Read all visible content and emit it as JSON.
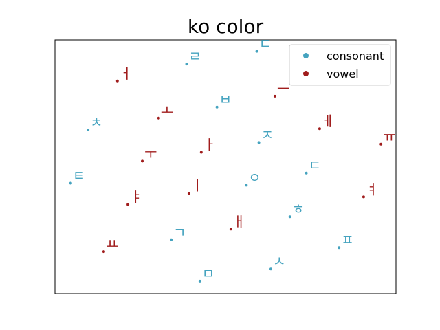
{
  "chart_data": {
    "type": "scatter",
    "title": "ko color",
    "xlim": [
      0,
      1
    ],
    "ylim": [
      0,
      1
    ],
    "x_ticks": false,
    "y_ticks": false,
    "legend_position": "top-right",
    "series": [
      {
        "name": "consonant",
        "color": "#45a3bf",
        "points": [
          {
            "label": "ㄹ",
            "x": 0.386,
            "y": 0.905
          },
          {
            "label": "ㄷ",
            "x": 0.592,
            "y": 0.955
          },
          {
            "label": "ㅂ",
            "x": 0.475,
            "y": 0.735
          },
          {
            "label": "ㅊ",
            "x": 0.097,
            "y": 0.645
          },
          {
            "label": "ㅈ",
            "x": 0.598,
            "y": 0.595
          },
          {
            "label": "ㅌ",
            "x": 0.046,
            "y": 0.435
          },
          {
            "label": "ㅇ",
            "x": 0.561,
            "y": 0.427
          },
          {
            "label": "ㄷ",
            "x": 0.737,
            "y": 0.475
          },
          {
            "label": "ㅎ",
            "x": 0.689,
            "y": 0.303
          },
          {
            "label": "ㄱ",
            "x": 0.341,
            "y": 0.212
          },
          {
            "label": "ㅍ",
            "x": 0.833,
            "y": 0.181
          },
          {
            "label": "ㅅ",
            "x": 0.633,
            "y": 0.097
          },
          {
            "label": "ㅁ",
            "x": 0.425,
            "y": 0.049
          }
        ]
      },
      {
        "name": "vowel",
        "color": "#a01c1c",
        "points": [
          {
            "label": "ㅓ",
            "x": 0.183,
            "y": 0.838
          },
          {
            "label": "ㅡ",
            "x": 0.645,
            "y": 0.778
          },
          {
            "label": "ㅗ",
            "x": 0.304,
            "y": 0.692
          },
          {
            "label": "ㅔ",
            "x": 0.776,
            "y": 0.65
          },
          {
            "label": "ㅠ",
            "x": 0.956,
            "y": 0.589
          },
          {
            "label": "ㅏ",
            "x": 0.429,
            "y": 0.557
          },
          {
            "label": "ㅜ",
            "x": 0.256,
            "y": 0.522
          },
          {
            "label": "ㅣ",
            "x": 0.393,
            "y": 0.395
          },
          {
            "label": "ㅕ",
            "x": 0.905,
            "y": 0.381
          },
          {
            "label": "ㅑ",
            "x": 0.214,
            "y": 0.351
          },
          {
            "label": "ㅐ",
            "x": 0.516,
            "y": 0.254
          },
          {
            "label": "ㅛ",
            "x": 0.143,
            "y": 0.165
          }
        ]
      }
    ]
  }
}
